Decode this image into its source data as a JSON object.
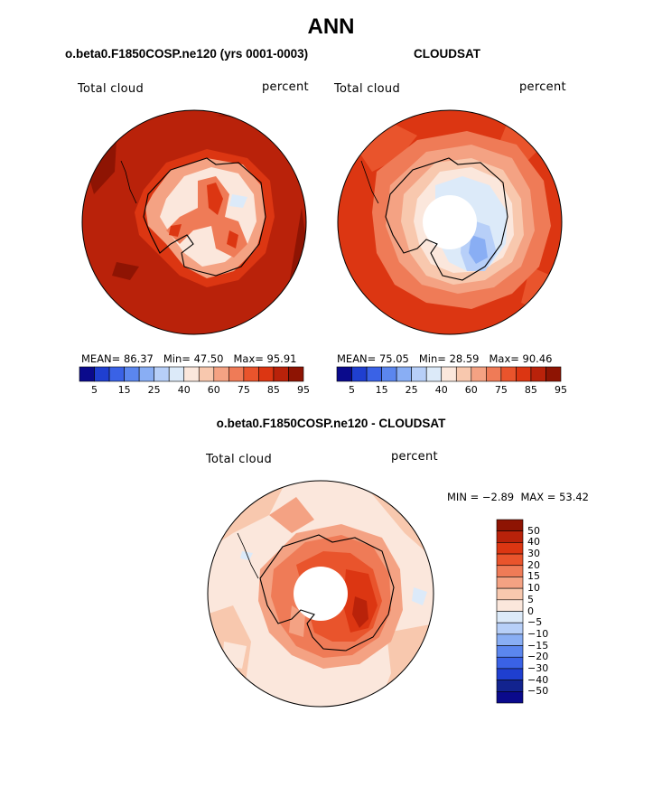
{
  "title": "ANN",
  "panels": [
    {
      "subtitle": "o.beta0.F1850COSP.ne120 (yrs 0001-0003)",
      "variable": "Total cloud",
      "units": "percent",
      "mean_label": "MEAN=",
      "mean": "86.37",
      "min_label": "Min=",
      "min": "47.50",
      "max_label": "Max=",
      "max": "95.91"
    },
    {
      "subtitle": "CLOUDSAT",
      "variable": "Total cloud",
      "units": "percent",
      "mean_label": "MEAN=",
      "mean": "75.05",
      "min_label": "Min=",
      "min": "28.59",
      "max_label": "Max=",
      "max": "90.46"
    }
  ],
  "abs_colorbar": {
    "ticks": [
      "5",
      "15",
      "25",
      "40",
      "60",
      "75",
      "85",
      "95"
    ],
    "colors": [
      "#0a0a8c",
      "#1f3fd0",
      "#3a62e6",
      "#5b86ee",
      "#89aef4",
      "#b7cff8",
      "#dceaf9",
      "#fbe7dc",
      "#f8c8ae",
      "#f4a283",
      "#ef7b57",
      "#e9542c",
      "#dc3612",
      "#b9220a",
      "#8e1403"
    ]
  },
  "diff": {
    "subtitle": "o.beta0.F1850COSP.ne120 - CLOUDSAT",
    "variable": "Total cloud",
    "units": "percent",
    "min_label": "MIN =",
    "min": "−2.89",
    "max_label": "MAX =",
    "max": "53.42",
    "colorbar": {
      "ticks": [
        "50",
        "40",
        "30",
        "20",
        "15",
        "10",
        "5",
        "0",
        "−5",
        "−10",
        "−15",
        "−20",
        "−30",
        "−40",
        "−50"
      ],
      "colors": [
        "#8e1403",
        "#b9220a",
        "#dc3612",
        "#e9542c",
        "#ef7b57",
        "#f4a283",
        "#f8c8ae",
        "#fbe7dc",
        "#dceaf9",
        "#b7cff8",
        "#89aef4",
        "#5b86ee",
        "#3a62e6",
        "#1f3fd0",
        "#12238f",
        "#0a0a8c"
      ]
    }
  }
}
